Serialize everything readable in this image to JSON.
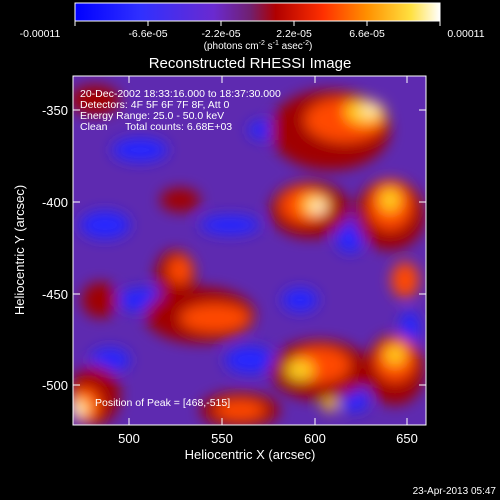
{
  "colorbar": {
    "ticks": [
      "-0.00011",
      "-6.6e-05",
      "-2.2e-05",
      "2.2e-05",
      "6.6e-05",
      "0.00011"
    ],
    "units_prefix": "(photons cm",
    "units_sup1": "-2",
    "units_mid": " s",
    "units_sup2": "-1",
    "units_mid2": " asec",
    "units_sup3": "-2",
    "units_suffix": ")"
  },
  "title": "Reconstructed RHESSI Image",
  "overlay": {
    "time_range": "20-Dec-2002 18:33:16.000 to 18:37:30.000",
    "detectors": "Detectors: 4F 5F 6F 7F 8F, Att 0",
    "energy": "Energy Range: 25.0 - 50.0 keV",
    "clean_label": "Clean",
    "total_counts": "Total counts: 6.68E+03",
    "peak_position": "Position of Peak = [468,-515]"
  },
  "axes": {
    "xlabel": "Heliocentric X (arcsec)",
    "ylabel": "Heliocentric Y (arcsec)",
    "xticks": [
      "500",
      "550",
      "600",
      "650"
    ],
    "yticks": [
      "-350",
      "-400",
      "-450",
      "-500"
    ]
  },
  "footer": {
    "timestamp": "23-Apr-2013 05:47"
  },
  "colors": {
    "negative": "#2020ff",
    "neutral": "#7030a0",
    "positive": "#ff6000",
    "peak": "#ffffff"
  }
}
